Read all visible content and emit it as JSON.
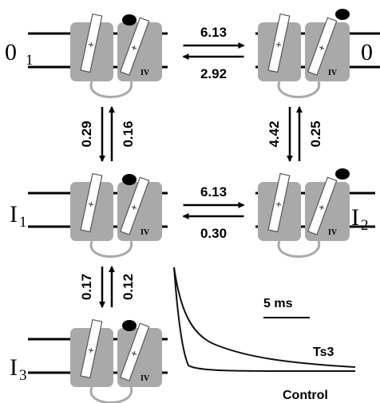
{
  "states": [
    {
      "name": "0",
      "sub": "1",
      "domain": "IV"
    },
    {
      "name": "0",
      "domain": "IV"
    },
    {
      "name": "I",
      "sub": "1",
      "domain": "IV"
    },
    {
      "name": "I",
      "sub": "2",
      "domain": "IV"
    },
    {
      "name": "I",
      "sub": "3",
      "domain": "IV"
    }
  ],
  "transitions": [
    {
      "from": 0,
      "to": 1,
      "forward": "6.13",
      "backward": "2.92"
    },
    {
      "from": 0,
      "to": 2,
      "forward": "0.29",
      "backward": "0.16"
    },
    {
      "from": 1,
      "to": 3,
      "forward": "4.42",
      "backward": "0.25"
    },
    {
      "from": 2,
      "to": 3,
      "forward": "6.13",
      "backward": "0.30"
    },
    {
      "from": 2,
      "to": 4,
      "forward": "0.17",
      "backward": "0.12"
    }
  ],
  "inset": {
    "scale_bar": "5 ms",
    "traces": [
      "Ts3",
      "Control"
    ]
  }
}
